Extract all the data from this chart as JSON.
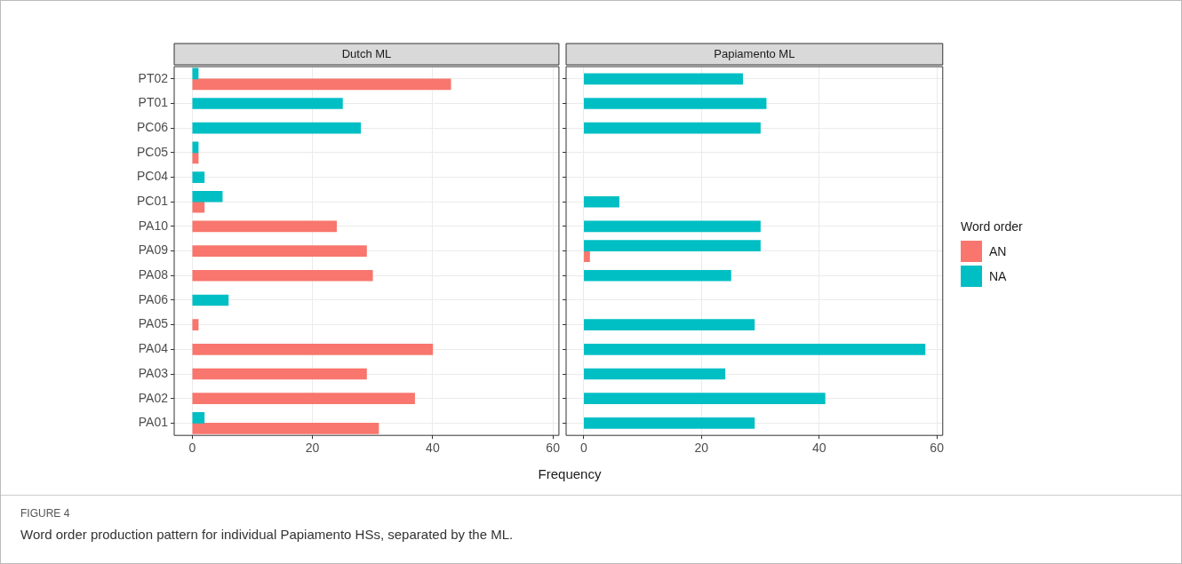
{
  "chart_data": [
    {
      "type": "bar",
      "orientation": "horizontal",
      "title": "Dutch ML",
      "xlabel": "Frequency",
      "categories": [
        "PT02",
        "PT01",
        "PC06",
        "PC05",
        "PC04",
        "PC01",
        "PA10",
        "PA09",
        "PA08",
        "PA06",
        "PA05",
        "PA04",
        "PA03",
        "PA02",
        "PA01"
      ],
      "series": [
        {
          "color": "#f8766d",
          "values": [
            43,
            null,
            null,
            1,
            null,
            2,
            24,
            29,
            30,
            null,
            1,
            40,
            29,
            37,
            31
          ]
        },
        {
          "color": "#00bfc4",
          "values": [
            1,
            25,
            28,
            1,
            2,
            5,
            null,
            null,
            null,
            6,
            null,
            null,
            null,
            null,
            2
          ]
        }
      ],
      "xlim": [
        -3,
        61
      ],
      "xticks": [
        0,
        20,
        40,
        60
      ],
      "grid": true,
      "legend": false,
      "annotations": [
        "FIGURE 4",
        "Word order production pattern for individual Papiamento HSs, separated by the ML."
      ]
    },
    {
      "type": "bar",
      "orientation": "horizontal",
      "title": "Papiamento ML",
      "categories": [
        null,
        null,
        null,
        null,
        null,
        null,
        null,
        null,
        null,
        null,
        null,
        null,
        null,
        null,
        null
      ],
      "series": [
        {
          "name": "AN",
          "color": "#f8766d",
          "values": [
            null,
            null,
            null,
            null,
            null,
            null,
            null,
            1,
            null,
            null,
            null,
            null,
            null,
            null,
            null
          ]
        },
        {
          "name": "NA",
          "color": "#00bfc4",
          "values": [
            27,
            31,
            30,
            null,
            null,
            6,
            30,
            30,
            25,
            null,
            29,
            58,
            24,
            41,
            29
          ]
        }
      ],
      "xlim": [
        -3,
        61
      ],
      "xticks": [
        0,
        20,
        40,
        60
      ],
      "grid": true,
      "tick_labels": "x",
      "legend": "right",
      "legend_title": "Word order"
    }
  ]
}
